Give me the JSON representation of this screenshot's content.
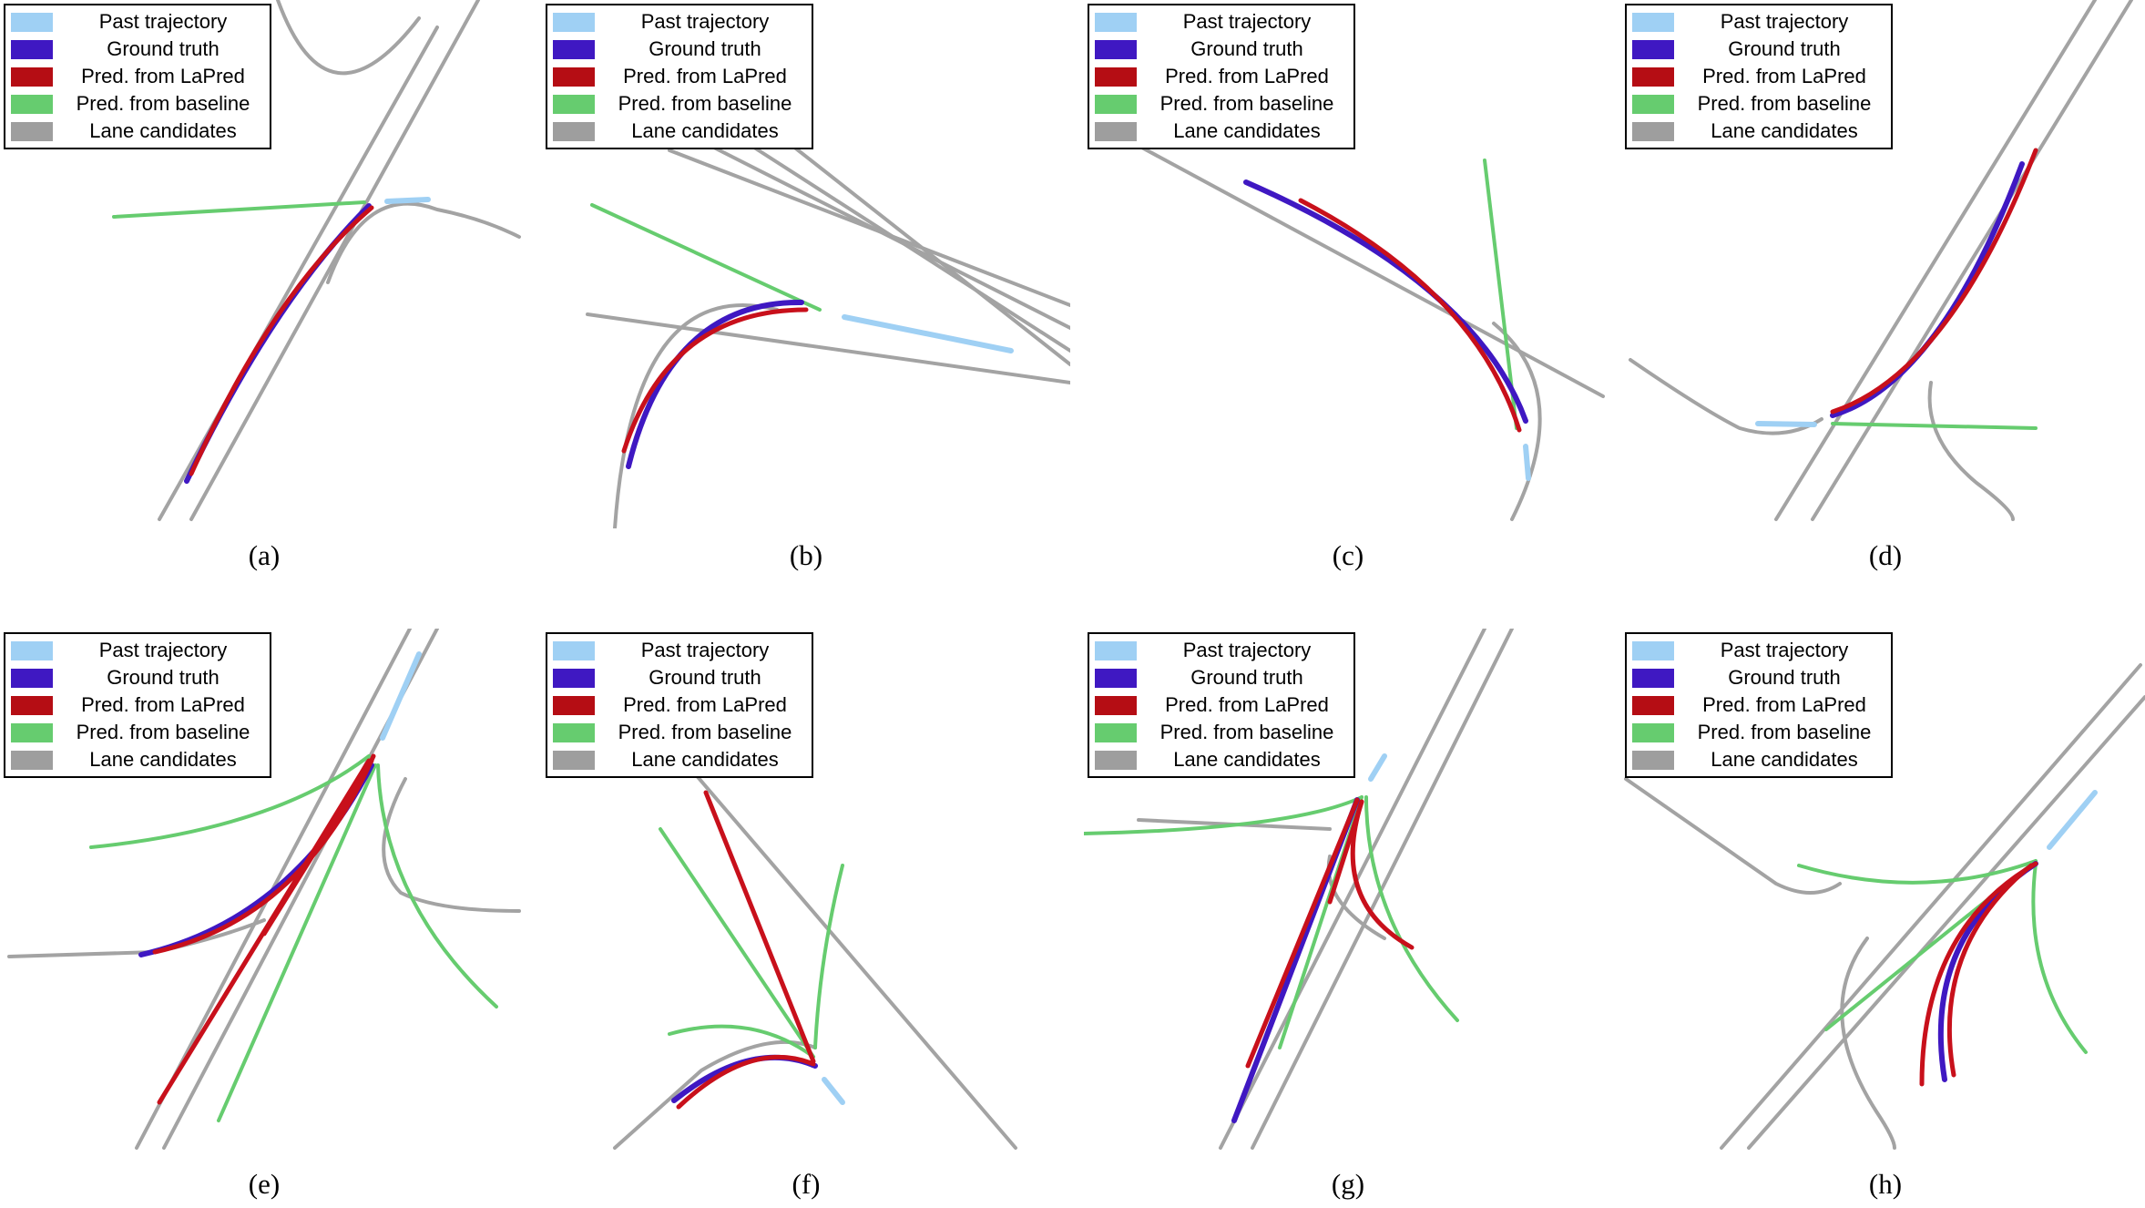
{
  "legend_items": [
    {
      "label": "Past trajectory",
      "color": "#9fd0f4",
      "icon": "past-trajectory-swatch"
    },
    {
      "label": "Ground truth",
      "color": "#3f18c2",
      "icon": "ground-truth-swatch"
    },
    {
      "label": "Pred. from LaPred",
      "color": "#b50d14",
      "icon": "lapred-swatch"
    },
    {
      "label": "Pred. from baseline",
      "color": "#66cc6f",
      "icon": "baseline-swatch"
    },
    {
      "label": "Lane candidates",
      "color": "#9e9e9e",
      "icon": "lane-swatch"
    }
  ],
  "panels": [
    {
      "caption": "(a)"
    },
    {
      "caption": "(b)"
    },
    {
      "caption": "(c)"
    },
    {
      "caption": "(d)"
    },
    {
      "caption": "(e)"
    },
    {
      "caption": "(f)"
    },
    {
      "caption": "(g)"
    },
    {
      "caption": "(h)"
    }
  ]
}
